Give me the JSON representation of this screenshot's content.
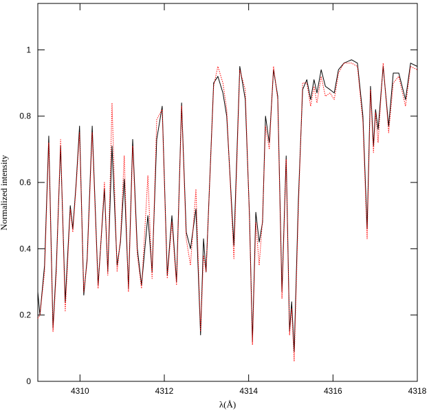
{
  "chart_data": {
    "type": "line",
    "x_label": "λ(Å)",
    "y_label": "Normalized intensity",
    "x": [
      4309.0,
      4309.05,
      4309.16,
      4309.26,
      4309.36,
      4309.44,
      4309.54,
      4309.65,
      4309.77,
      4309.83,
      4309.91,
      4309.99,
      4310.09,
      4310.17,
      4310.29,
      4310.43,
      4310.58,
      4310.66,
      4310.76,
      4310.88,
      4310.96,
      4311.05,
      4311.15,
      4311.25,
      4311.36,
      4311.46,
      4311.61,
      4311.71,
      4311.82,
      4311.95,
      4312.07,
      4312.18,
      4312.29,
      4312.41,
      4312.52,
      4312.62,
      4312.75,
      4312.86,
      4312.93,
      4312.99,
      4313.17,
      4313.27,
      4313.39,
      4313.48,
      4313.65,
      4313.79,
      4313.92,
      4314.02,
      4314.09,
      4314.17,
      4314.25,
      4314.33,
      4314.4,
      4314.49,
      4314.59,
      4314.69,
      4314.79,
      4314.89,
      4314.97,
      4315.02,
      4315.08,
      4315.18,
      4315.28,
      4315.38,
      4315.47,
      4315.55,
      4315.62,
      4315.72,
      4315.82,
      4315.93,
      4316.03,
      4316.13,
      4316.26,
      4316.44,
      4316.58,
      4316.71,
      4316.81,
      4316.89,
      4316.96,
      4317.01,
      4317.07,
      4317.19,
      4317.32,
      4317.43,
      4317.56,
      4317.72,
      4317.84,
      4318.0
    ],
    "series": [
      {
        "color": "#000000",
        "dash": false,
        "values": [
          0.27,
          0.2,
          0.35,
          0.74,
          0.16,
          0.35,
          0.71,
          0.24,
          0.53,
          0.46,
          0.6,
          0.77,
          0.26,
          0.37,
          0.77,
          0.29,
          0.58,
          0.33,
          0.71,
          0.35,
          0.42,
          0.61,
          0.28,
          0.73,
          0.4,
          0.29,
          0.5,
          0.33,
          0.73,
          0.83,
          0.32,
          0.5,
          0.3,
          0.84,
          0.45,
          0.4,
          0.52,
          0.14,
          0.43,
          0.33,
          0.9,
          0.92,
          0.87,
          0.8,
          0.41,
          0.95,
          0.85,
          0.5,
          0.12,
          0.51,
          0.42,
          0.48,
          0.8,
          0.72,
          0.94,
          0.86,
          0.27,
          0.68,
          0.15,
          0.24,
          0.09,
          0.55,
          0.88,
          0.91,
          0.85,
          0.91,
          0.87,
          0.94,
          0.89,
          0.88,
          0.87,
          0.94,
          0.96,
          0.97,
          0.96,
          0.8,
          0.46,
          0.89,
          0.71,
          0.82,
          0.76,
          0.95,
          0.77,
          0.93,
          0.93,
          0.85,
          0.96,
          0.95
        ]
      },
      {
        "color": "#ff0000",
        "dash": true,
        "values": [
          0.19,
          0.2,
          0.33,
          0.72,
          0.15,
          0.33,
          0.73,
          0.21,
          0.52,
          0.45,
          0.59,
          0.75,
          0.27,
          0.36,
          0.75,
          0.28,
          0.6,
          0.32,
          0.84,
          0.33,
          0.43,
          0.68,
          0.27,
          0.71,
          0.38,
          0.28,
          0.62,
          0.31,
          0.79,
          0.82,
          0.31,
          0.48,
          0.29,
          0.83,
          0.43,
          0.35,
          0.58,
          0.15,
          0.38,
          0.33,
          0.89,
          0.95,
          0.9,
          0.82,
          0.37,
          0.94,
          0.88,
          0.49,
          0.11,
          0.48,
          0.35,
          0.49,
          0.77,
          0.7,
          0.95,
          0.85,
          0.25,
          0.67,
          0.14,
          0.22,
          0.06,
          0.52,
          0.9,
          0.9,
          0.83,
          0.89,
          0.84,
          0.92,
          0.86,
          0.87,
          0.85,
          0.93,
          0.96,
          0.96,
          0.95,
          0.78,
          0.43,
          0.88,
          0.69,
          0.81,
          0.72,
          0.96,
          0.75,
          0.9,
          0.92,
          0.83,
          0.95,
          0.94
        ]
      }
    ],
    "xlim": [
      4309,
      4318
    ],
    "xticks": [
      4310,
      4312,
      4314,
      4316,
      4318
    ],
    "ylim": [
      0,
      1.14
    ],
    "yticks": [
      0,
      0.2,
      0.4,
      0.6,
      0.8,
      1
    ]
  }
}
